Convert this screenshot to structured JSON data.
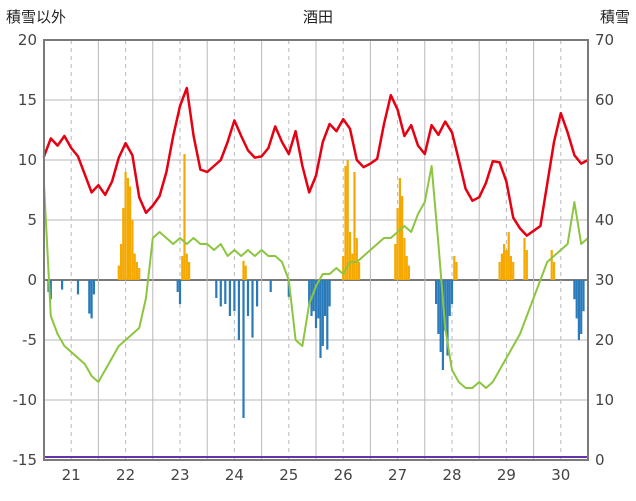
{
  "header": {
    "left_axis_title": "積雪以外",
    "chart_title": "酒田",
    "right_axis_title": "積雪"
  },
  "chart_data": {
    "type": "line",
    "title": "酒田",
    "left_axis": {
      "label": "積雪以外",
      "min": -15,
      "max": 20,
      "tick_step": 5,
      "tick_labels": [
        "20",
        "15",
        "10",
        "5",
        "0",
        "-5",
        "-10",
        "-15"
      ]
    },
    "right_axis": {
      "label": "積雪",
      "min": 0,
      "max": 70,
      "tick_step": 10,
      "tick_labels": [
        "70",
        "60",
        "50",
        "40",
        "30",
        "20",
        "10",
        "0"
      ]
    },
    "x_axis": {
      "labels": [
        "21",
        "22",
        "23",
        "24",
        "25",
        "26",
        "27",
        "28",
        "29",
        "30"
      ],
      "days": 10,
      "hours_total": 240
    },
    "grid": {
      "horizontal": true,
      "vertical_major": true,
      "vertical_minor_dashed": true,
      "legend": "none"
    },
    "colors": {
      "temperature": "#e60012",
      "snow_depth": "#8cc63f",
      "snowfall_bar": "#f5a800",
      "precipitation_bar": "#2a7ab9",
      "baseline": "#6633aa",
      "grid": "#b8b8b8",
      "axis": "#7a7a7a",
      "tick_text": "#444444"
    },
    "series": [
      {
        "name": "snowfall",
        "type": "bar",
        "axis": "left",
        "color_key": "snowfall_bar",
        "points": [
          [
            33,
            1.2
          ],
          [
            34,
            3
          ],
          [
            35,
            6
          ],
          [
            36,
            9
          ],
          [
            37,
            8.5
          ],
          [
            38,
            7.8
          ],
          [
            39,
            5
          ],
          [
            40,
            2.2
          ],
          [
            41,
            1.5
          ],
          [
            42,
            1
          ],
          [
            61,
            2
          ],
          [
            62,
            10.5
          ],
          [
            63,
            2.2
          ],
          [
            64,
            1.5
          ],
          [
            88,
            1.6
          ],
          [
            89,
            1.2
          ],
          [
            132,
            2
          ],
          [
            133,
            9.5
          ],
          [
            134,
            10
          ],
          [
            135,
            4
          ],
          [
            136,
            2.2
          ],
          [
            137,
            9
          ],
          [
            138,
            3.5
          ],
          [
            139,
            1.5
          ],
          [
            155,
            3
          ],
          [
            156,
            6
          ],
          [
            157,
            8.5
          ],
          [
            158,
            7
          ],
          [
            159,
            3.5
          ],
          [
            160,
            2
          ],
          [
            161,
            1.2
          ],
          [
            181,
            2
          ],
          [
            182,
            1.5
          ],
          [
            201,
            1.5
          ],
          [
            202,
            2.2
          ],
          [
            203,
            3
          ],
          [
            204,
            2.5
          ],
          [
            205,
            4
          ],
          [
            206,
            2
          ],
          [
            207,
            1.5
          ],
          [
            212,
            3.5
          ],
          [
            213,
            2.5
          ],
          [
            224,
            2.5
          ],
          [
            225,
            1.5
          ]
        ]
      },
      {
        "name": "precipitation",
        "type": "bar",
        "axis": "left",
        "color_key": "precipitation_bar",
        "points": [
          [
            2,
            -1
          ],
          [
            3,
            -1.6
          ],
          [
            8,
            -0.8
          ],
          [
            15,
            -1.2
          ],
          [
            20,
            -2.8
          ],
          [
            21,
            -3.2
          ],
          [
            22,
            -1.2
          ],
          [
            59,
            -1
          ],
          [
            60,
            -2
          ],
          [
            76,
            -1.5
          ],
          [
            78,
            -2.2
          ],
          [
            80,
            -2
          ],
          [
            82,
            -3
          ],
          [
            84,
            -2.6
          ],
          [
            86,
            -5
          ],
          [
            88,
            -11.5
          ],
          [
            90,
            -3
          ],
          [
            92,
            -4.8
          ],
          [
            94,
            -2.2
          ],
          [
            100,
            -1
          ],
          [
            108,
            -1.4
          ],
          [
            117,
            -2
          ],
          [
            118,
            -3
          ],
          [
            119,
            -2.6
          ],
          [
            120,
            -4
          ],
          [
            121,
            -3.2
          ],
          [
            122,
            -6.5
          ],
          [
            123,
            -5.5
          ],
          [
            124,
            -3
          ],
          [
            125,
            -5.8
          ],
          [
            126,
            -2.2
          ],
          [
            173,
            -2
          ],
          [
            174,
            -4.5
          ],
          [
            175,
            -6
          ],
          [
            176,
            -7.5
          ],
          [
            177,
            -4.2
          ],
          [
            178,
            -6.3
          ],
          [
            179,
            -3
          ],
          [
            180,
            -2
          ],
          [
            234,
            -1.6
          ],
          [
            235,
            -3.2
          ],
          [
            236,
            -5
          ],
          [
            237,
            -4.5
          ],
          [
            238,
            -2.6
          ]
        ]
      },
      {
        "name": "snow-depth",
        "type": "line",
        "axis": "right",
        "color_key": "snow_depth",
        "width": 2,
        "t_step": 3,
        "values": [
          46,
          24,
          21,
          19,
          18,
          17,
          16,
          14,
          13,
          15,
          17,
          19,
          20,
          21,
          22,
          27,
          37,
          38,
          37,
          36,
          37,
          36,
          37,
          36,
          36,
          35,
          36,
          34,
          35,
          34,
          35,
          34,
          35,
          34,
          34,
          33,
          30,
          20,
          19,
          26,
          29,
          31,
          31,
          32,
          31,
          33,
          33,
          34,
          35,
          36,
          37,
          37,
          38,
          39,
          38,
          41,
          43,
          49,
          36,
          22,
          15,
          13,
          12,
          12,
          13,
          12,
          13,
          15,
          17,
          19,
          21,
          24,
          27,
          30,
          33,
          34,
          35,
          36,
          43,
          36,
          37
        ]
      },
      {
        "name": "baseline",
        "type": "hline",
        "axis": "right",
        "color_key": "baseline",
        "value": 0.5,
        "width": 2
      },
      {
        "name": "temperature",
        "type": "line",
        "axis": "left",
        "color_key": "temperature",
        "width": 2.5,
        "t_step": 3,
        "values": [
          10.3,
          11.8,
          11.2,
          12.0,
          11.0,
          10.3,
          8.8,
          7.3,
          7.9,
          7.1,
          8.2,
          10.2,
          11.4,
          10.4,
          6.9,
          5.6,
          6.2,
          7.0,
          9.0,
          12.0,
          14.5,
          16.0,
          12.0,
          9.2,
          9.0,
          9.5,
          10.0,
          11.5,
          13.3,
          12.0,
          10.8,
          10.2,
          10.3,
          11.0,
          12.8,
          11.5,
          10.5,
          12.4,
          9.5,
          7.3,
          8.7,
          11.5,
          13.0,
          12.4,
          13.4,
          12.6,
          10.0,
          9.4,
          9.7,
          10.1,
          13.0,
          15.4,
          14.2,
          12.0,
          12.9,
          11.2,
          10.5,
          12.9,
          12.1,
          13.2,
          12.3,
          10.0,
          7.6,
          6.6,
          6.9,
          8.1,
          9.9,
          9.8,
          8.2,
          5.2,
          4.3,
          3.7,
          4.1,
          4.5,
          8.0,
          11.5,
          13.9,
          12.3,
          10.4,
          9.7,
          10.0
        ]
      }
    ]
  }
}
